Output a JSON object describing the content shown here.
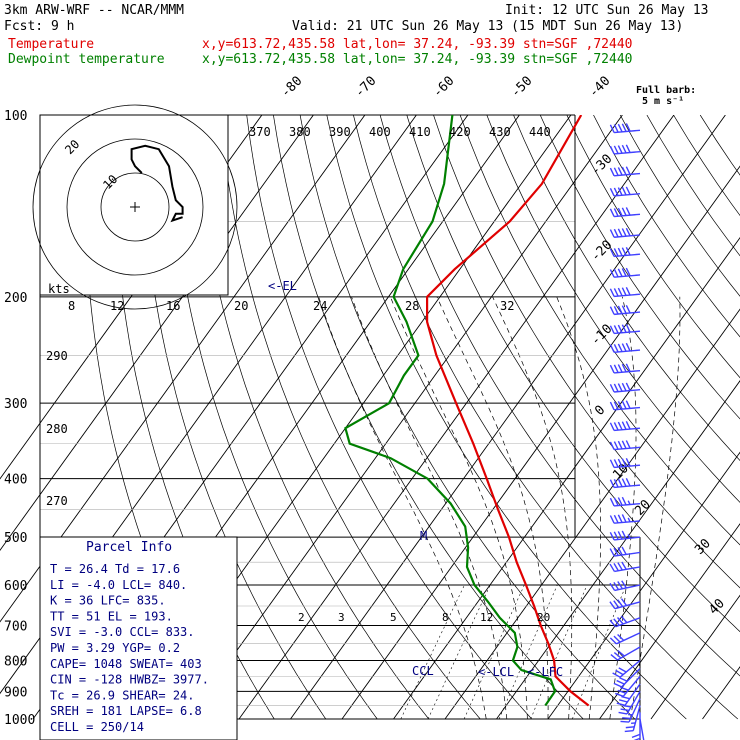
{
  "header": {
    "model": "3km ARW-WRF -- NCAR/MMM",
    "init": "Init: 12 UTC Sun 26 May 13",
    "fcst": "Fcst:    9 h",
    "valid": "Valid: 21 UTC Sun 26 May 13 (15 MDT Sun 26 May 13)",
    "temp_label": "Temperature",
    "dew_label": "Dewpoint temperature",
    "temp_loc": "x,y=613.72,435.58   lat,lon= 37.24, -93.39   stn=SGF ,72440",
    "dew_loc": "x,y=613.72,435.58   lat,lon= 37.24, -93.39   stn=SGF ,72440"
  },
  "colors": {
    "temperature": "#e00000",
    "dewpoint": "#008000",
    "info": "#000080",
    "barb": "#4040ff"
  },
  "barb_key": {
    "line1": "Full barb:",
    "line2": "5 m s⁻¹"
  },
  "pressure_labels": [
    "100",
    "200",
    "300",
    "400",
    "500",
    "600",
    "700",
    "800",
    "900",
    "1000"
  ],
  "hodograph": {
    "unit": "kts",
    "ring_labels": [
      "10",
      "20"
    ]
  },
  "parcel_info": {
    "title": "Parcel Info",
    "rows": [
      "T   =   26.4  Td =  17.6",
      "LI  =   -4.0  LCL=  840.",
      "K   =     36  LFC=  835.",
      "TT  =     51  EL  =  193.",
      "SVI =   -3.0  CCL=  833.",
      "PW  =   3.29  YGP=   0.2",
      "CAPE=   1048  SWEAT=  403",
      "CIN =   -128  HWBZ= 3977.",
      "Tc  =   26.9  SHEAR=  24.",
      "SREH =   181  LAPSE=  6.8",
      "CELL = 250/14"
    ]
  },
  "annotations": {
    "el": "<-EL",
    "lcl": "<-LCL",
    "lfc": "<-LFC",
    "ccl": "CCL",
    "m": "M"
  },
  "chart_data": {
    "type": "line",
    "title": "",
    "x_axis": "temperature (°C), skewed",
    "y_axis": "pressure (hPa), log scale",
    "ylim": [
      1000,
      100
    ],
    "isotherm_labels": [
      "-80",
      "-70",
      "-60",
      "-50",
      "-40",
      "-30",
      "-20",
      "-10",
      "0",
      "10",
      "20",
      "30",
      "40"
    ],
    "dry_adiabat_labels": [
      "370",
      "380",
      "390",
      "400",
      "410",
      "420",
      "430",
      "440"
    ],
    "moist_adiabat_labels": [
      "8",
      "12",
      "16",
      "20",
      "24",
      "28",
      "32"
    ],
    "theta_labels_left": [
      "290",
      "280",
      "270"
    ],
    "mixing_ratio_labels": [
      "2",
      "3",
      "5",
      "8",
      "12",
      "20"
    ],
    "series": [
      {
        "name": "Temperature",
        "p": [
          950,
          900,
          850,
          800,
          750,
          700,
          650,
          600,
          550,
          500,
          450,
          400,
          350,
          300,
          250,
          220,
          200,
          180,
          150,
          130,
          100
        ],
        "t": [
          26.0,
          20.5,
          15.5,
          13.0,
          9.5,
          5.5,
          1.5,
          -3.0,
          -8.0,
          -13.0,
          -19.0,
          -25.5,
          -33.0,
          -42.0,
          -52.5,
          -59.0,
          -62.5,
          -61.0,
          -57.0,
          -56.0,
          -58.0
        ]
      },
      {
        "name": "Dewpoint temperature",
        "p": [
          950,
          900,
          860,
          830,
          800,
          760,
          720,
          680,
          640,
          600,
          560,
          520,
          480,
          440,
          400,
          370,
          350,
          330,
          300,
          270,
          250,
          220,
          200,
          180,
          150,
          130,
          100
        ],
        "d": [
          17.6,
          17.5,
          15.0,
          8.0,
          5.0,
          4.0,
          1.5,
          -3.5,
          -8.0,
          -13.0,
          -17.0,
          -19.5,
          -23.0,
          -29.0,
          -37.0,
          -47.0,
          -57.0,
          -60.0,
          -55.0,
          -56.0,
          -56.0,
          -63.0,
          -69.0,
          -71.0,
          -72.0,
          -75.0,
          -83.0
        ]
      }
    ],
    "hodograph": {
      "u": [
        14.0,
        11.0,
        12.0,
        14.0,
        14.0,
        12.0,
        11.0,
        10.0,
        7.0,
        3.0,
        -1.0,
        -1.0,
        0.0,
        2.0
      ],
      "v": [
        -3.0,
        -4.0,
        -2.0,
        -2.0,
        0.0,
        2.0,
        6.0,
        12.0,
        17.0,
        18.0,
        17.0,
        14.0,
        12.0,
        10.0
      ]
    },
    "wind_barbs": [
      {
        "p": 1000,
        "speed_ms": 5,
        "dir_deg": 170
      },
      {
        "p": 975,
        "speed_ms": 10,
        "dir_deg": 180
      },
      {
        "p": 950,
        "speed_ms": 12,
        "dir_deg": 195
      },
      {
        "p": 925,
        "speed_ms": 14,
        "dir_deg": 205
      },
      {
        "p": 900,
        "speed_ms": 15,
        "dir_deg": 210
      },
      {
        "p": 875,
        "speed_ms": 15,
        "dir_deg": 215
      },
      {
        "p": 850,
        "speed_ms": 15,
        "dir_deg": 220
      },
      {
        "p": 825,
        "speed_ms": 15,
        "dir_deg": 225
      },
      {
        "p": 800,
        "speed_ms": 15,
        "dir_deg": 230
      },
      {
        "p": 760,
        "speed_ms": 15,
        "dir_deg": 240
      },
      {
        "p": 720,
        "speed_ms": 15,
        "dir_deg": 245
      },
      {
        "p": 680,
        "speed_ms": 20,
        "dir_deg": 250
      },
      {
        "p": 640,
        "speed_ms": 20,
        "dir_deg": 255
      },
      {
        "p": 600,
        "speed_ms": 20,
        "dir_deg": 258
      },
      {
        "p": 560,
        "speed_ms": 20,
        "dir_deg": 260
      },
      {
        "p": 530,
        "speed_ms": 20,
        "dir_deg": 262
      },
      {
        "p": 500,
        "speed_ms": 22,
        "dir_deg": 264
      },
      {
        "p": 470,
        "speed_ms": 22,
        "dir_deg": 265
      },
      {
        "p": 440,
        "speed_ms": 22,
        "dir_deg": 265
      },
      {
        "p": 410,
        "speed_ms": 25,
        "dir_deg": 265
      },
      {
        "p": 380,
        "speed_ms": 25,
        "dir_deg": 265
      },
      {
        "p": 355,
        "speed_ms": 25,
        "dir_deg": 265
      },
      {
        "p": 330,
        "speed_ms": 25,
        "dir_deg": 265
      },
      {
        "p": 305,
        "speed_ms": 25,
        "dir_deg": 265
      },
      {
        "p": 285,
        "speed_ms": 25,
        "dir_deg": 265
      },
      {
        "p": 265,
        "speed_ms": 25,
        "dir_deg": 265
      },
      {
        "p": 245,
        "speed_ms": 25,
        "dir_deg": 265
      },
      {
        "p": 228,
        "speed_ms": 25,
        "dir_deg": 265
      },
      {
        "p": 212,
        "speed_ms": 25,
        "dir_deg": 265
      },
      {
        "p": 198,
        "speed_ms": 25,
        "dir_deg": 265
      },
      {
        "p": 184,
        "speed_ms": 25,
        "dir_deg": 265
      },
      {
        "p": 170,
        "speed_ms": 25,
        "dir_deg": 265
      },
      {
        "p": 158,
        "speed_ms": 25,
        "dir_deg": 265
      },
      {
        "p": 146,
        "speed_ms": 25,
        "dir_deg": 265
      },
      {
        "p": 135,
        "speed_ms": 25,
        "dir_deg": 265
      },
      {
        "p": 125,
        "speed_ms": 25,
        "dir_deg": 265
      },
      {
        "p": 115,
        "speed_ms": 25,
        "dir_deg": 265
      },
      {
        "p": 106,
        "speed_ms": 25,
        "dir_deg": 265
      }
    ]
  }
}
